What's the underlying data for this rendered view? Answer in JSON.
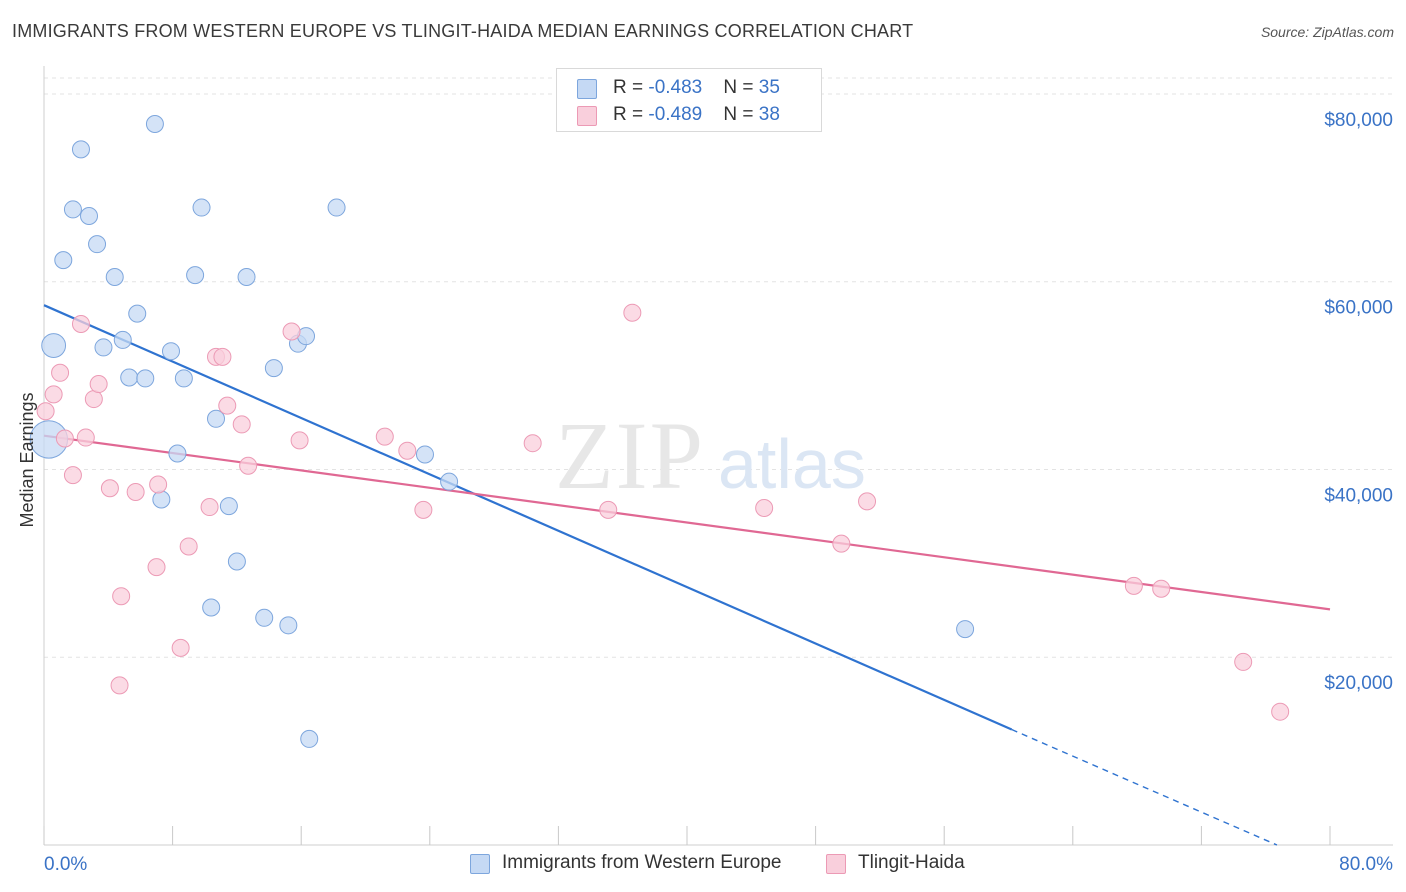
{
  "header": {
    "title": "IMMIGRANTS FROM WESTERN EUROPE VS TLINGIT-HAIDA MEDIAN EARNINGS CORRELATION CHART",
    "source": "Source: ZipAtlas.com"
  },
  "watermark": {
    "zip": "ZIP",
    "atlas": "atlas"
  },
  "legend_top": [
    {
      "r_label": "R = ",
      "r_value": "-0.483",
      "n_label": "N = ",
      "n_value": "35"
    },
    {
      "r_label": "R = ",
      "r_value": "-0.489",
      "n_label": "N = ",
      "n_value": "38"
    }
  ],
  "legend_bottom": [
    {
      "label": "Immigrants from Western Europe"
    },
    {
      "label": "Tlingit-Haida"
    }
  ],
  "colors": {
    "blue_fill": "#c5d9f4",
    "blue_stroke": "#7da6dd",
    "blue_line": "#2f73d0",
    "pink_fill": "#f9cfdc",
    "pink_stroke": "#ec9ab5",
    "pink_line": "#e06893",
    "axis_text": "#3a73c6",
    "grid": "#e3e3e3"
  },
  "chart_data": {
    "type": "scatter",
    "title": "IMMIGRANTS FROM WESTERN EUROPE VS TLINGIT-HAIDA MEDIAN EARNINGS CORRELATION CHART",
    "xlabel": "",
    "ylabel": "Median Earnings",
    "xlim": [
      0,
      80
    ],
    "ylim": [
      0,
      81700
    ],
    "x_tick_labels": [
      "0.0%",
      "80.0%"
    ],
    "y_ticks": [
      20000,
      40000,
      60000,
      80000
    ],
    "y_tick_labels": [
      "$20,000",
      "$40,000",
      "$60,000",
      "$80,000"
    ],
    "series": [
      {
        "name": "Immigrants from Western Europe",
        "color": "blue",
        "points": [
          [
            0.3,
            43200,
            2.2
          ],
          [
            0.6,
            53200,
            1.4
          ],
          [
            1.2,
            62300,
            1
          ],
          [
            1.8,
            67700,
            1
          ],
          [
            2.3,
            74100,
            1
          ],
          [
            2.8,
            67000,
            1
          ],
          [
            3.3,
            64000,
            1
          ],
          [
            3.7,
            53000,
            1
          ],
          [
            4.4,
            60500,
            1
          ],
          [
            4.9,
            53800,
            1
          ],
          [
            5.3,
            49800,
            1
          ],
          [
            5.8,
            56600,
            1
          ],
          [
            6.3,
            49700,
            1
          ],
          [
            6.9,
            76800,
            1
          ],
          [
            7.3,
            36800,
            1
          ],
          [
            7.9,
            52600,
            1
          ],
          [
            8.3,
            41700,
            1
          ],
          [
            8.7,
            49700,
            1
          ],
          [
            9.4,
            60700,
            1
          ],
          [
            9.8,
            67900,
            1
          ],
          [
            10.4,
            25300,
            1
          ],
          [
            10.7,
            45400,
            1
          ],
          [
            11.5,
            36100,
            1
          ],
          [
            12.0,
            30200,
            1
          ],
          [
            12.6,
            60500,
            1
          ],
          [
            13.7,
            24200,
            1
          ],
          [
            14.3,
            50800,
            1
          ],
          [
            15.2,
            23400,
            1
          ],
          [
            15.8,
            53400,
            1
          ],
          [
            16.3,
            54200,
            1
          ],
          [
            16.5,
            11300,
            1
          ],
          [
            18.2,
            67900,
            1
          ],
          [
            23.7,
            41600,
            1
          ],
          [
            25.2,
            38700,
            1
          ],
          [
            57.3,
            23000,
            1
          ]
        ],
        "trend": {
          "x0": 0,
          "y0": 57500,
          "x1": 60.2,
          "y1": 12300,
          "dash_to_x": 76.7,
          "dash_to_y": 0
        }
      },
      {
        "name": "Tlingit-Haida",
        "color": "pink",
        "points": [
          [
            0.1,
            46200,
            1
          ],
          [
            0.6,
            48000,
            1
          ],
          [
            1.0,
            50300,
            1
          ],
          [
            1.3,
            43300,
            1
          ],
          [
            1.8,
            39400,
            1
          ],
          [
            2.3,
            55500,
            1
          ],
          [
            2.6,
            43400,
            1
          ],
          [
            3.1,
            47500,
            1
          ],
          [
            3.4,
            49100,
            1
          ],
          [
            4.1,
            38000,
            1
          ],
          [
            4.7,
            17000,
            1
          ],
          [
            4.8,
            26500,
            1
          ],
          [
            5.7,
            37600,
            1
          ],
          [
            7.0,
            29600,
            1
          ],
          [
            7.1,
            38400,
            1
          ],
          [
            8.5,
            21000,
            1
          ],
          [
            9.0,
            31800,
            1
          ],
          [
            10.3,
            36000,
            1
          ],
          [
            10.7,
            52000,
            1
          ],
          [
            11.1,
            52000,
            1
          ],
          [
            11.4,
            46800,
            1
          ],
          [
            12.3,
            44800,
            1
          ],
          [
            12.7,
            40400,
            1
          ],
          [
            15.4,
            54700,
            1
          ],
          [
            15.9,
            43100,
            1
          ],
          [
            21.2,
            43500,
            1
          ],
          [
            22.6,
            42000,
            1
          ],
          [
            23.6,
            35700,
            1
          ],
          [
            30.4,
            42800,
            1
          ],
          [
            35.1,
            35700,
            1
          ],
          [
            36.6,
            56700,
            1
          ],
          [
            44.8,
            35900,
            1
          ],
          [
            49.6,
            32100,
            1
          ],
          [
            51.2,
            36600,
            1
          ],
          [
            67.8,
            27600,
            1
          ],
          [
            69.5,
            27300,
            1
          ],
          [
            74.6,
            19500,
            1
          ],
          [
            76.9,
            14200,
            1
          ]
        ],
        "trend": {
          "x0": 0,
          "y0": 43600,
          "x1": 80,
          "y1": 25100
        }
      }
    ]
  }
}
